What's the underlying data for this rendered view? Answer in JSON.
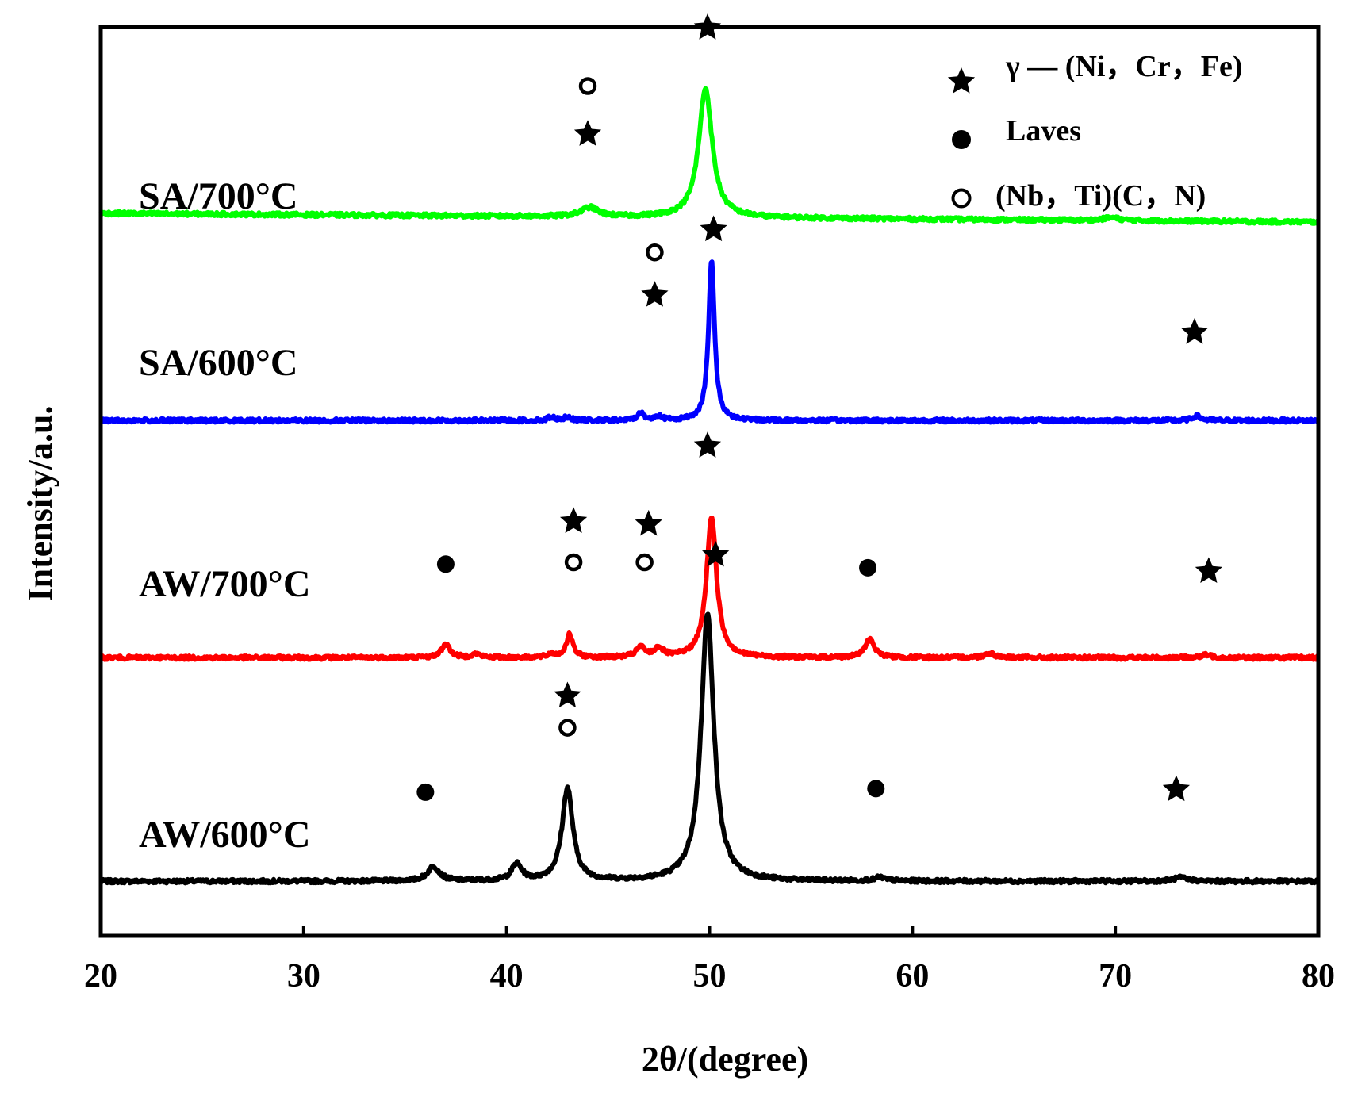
{
  "chart_data": {
    "type": "line",
    "title": "",
    "xlabel": "2θ/(degree)",
    "ylabel": "Intensity/a.u.",
    "xlim": [
      20,
      80
    ],
    "xticks": [
      "20",
      "30",
      "40",
      "50",
      "60",
      "70",
      "80"
    ],
    "ylim": [
      0,
      1
    ],
    "grid": false,
    "legend_position": "top-right",
    "legend": [
      {
        "marker": "star",
        "label": "γ — (Ni，Cr，Fe)"
      },
      {
        "marker": "filled-circle",
        "label": "Laves"
      },
      {
        "marker": "open-circle",
        "label": "(Nb，Ti)(C，N)"
      }
    ],
    "series": [
      {
        "name": "AW/600°C",
        "color": "#000000",
        "baseline": 0.06,
        "peaks": [
          [
            36.4,
            0.016,
            0.35
          ],
          [
            40.5,
            0.018,
            0.3
          ],
          [
            43.0,
            0.102,
            0.32
          ],
          [
            49.9,
            0.294,
            0.38
          ],
          [
            58.4,
            0.004,
            0.3
          ],
          [
            73.2,
            0.004,
            0.4
          ]
        ],
        "markers": [
          {
            "type": "filled-circle",
            "x": 36.0,
            "y": 0.158
          },
          {
            "type": "open-circle",
            "x": 43.0,
            "y": 0.229
          },
          {
            "type": "star",
            "x": 43.0,
            "y": 0.264
          },
          {
            "type": "star",
            "x": 50.3,
            "y": 0.419
          },
          {
            "type": "filled-circle",
            "x": 58.2,
            "y": 0.162
          },
          {
            "type": "star",
            "x": 73.0,
            "y": 0.161
          }
        ]
      },
      {
        "name": "AW/700°C",
        "color": "#ff0000",
        "baseline": 0.306,
        "peaks": [
          [
            37.0,
            0.015,
            0.25
          ],
          [
            38.5,
            0.004,
            0.25
          ],
          [
            42.2,
            0.004,
            0.2
          ],
          [
            43.1,
            0.025,
            0.2
          ],
          [
            46.6,
            0.011,
            0.25
          ],
          [
            47.5,
            0.01,
            0.25
          ],
          [
            50.1,
            0.155,
            0.3
          ],
          [
            57.9,
            0.02,
            0.28
          ],
          [
            63.8,
            0.005,
            0.3
          ],
          [
            74.5,
            0.003,
            0.3
          ]
        ],
        "markers": [
          {
            "type": "filled-circle",
            "x": 37.0,
            "y": 0.409
          },
          {
            "type": "open-circle",
            "x": 43.3,
            "y": 0.411
          },
          {
            "type": "star",
            "x": 43.3,
            "y": 0.456
          },
          {
            "type": "open-circle",
            "x": 46.8,
            "y": 0.411
          },
          {
            "type": "star",
            "x": 47.0,
            "y": 0.453
          },
          {
            "type": "star",
            "x": 49.9,
            "y": 0.539
          },
          {
            "type": "filled-circle",
            "x": 57.8,
            "y": 0.405
          },
          {
            "type": "star",
            "x": 74.6,
            "y": 0.401
          }
        ]
      },
      {
        "name": "SA/600°C",
        "color": "#0000ff",
        "baseline": 0.567,
        "peaks": [
          [
            42.2,
            0.004,
            0.2
          ],
          [
            43.0,
            0.004,
            0.2
          ],
          [
            46.6,
            0.008,
            0.2
          ],
          [
            47.5,
            0.005,
            0.2
          ],
          [
            50.1,
            0.175,
            0.18
          ],
          [
            74.0,
            0.005,
            0.25
          ]
        ],
        "markers": [
          {
            "type": "open-circle",
            "x": 47.3,
            "y": 0.752
          },
          {
            "type": "star",
            "x": 47.3,
            "y": 0.705
          },
          {
            "type": "star",
            "x": 50.2,
            "y": 0.777
          },
          {
            "type": "star",
            "x": 73.9,
            "y": 0.664
          }
        ]
      },
      {
        "name": "SA/700°C",
        "color": "#00ff00",
        "baseline": 0.795,
        "peaks": [
          [
            44.1,
            0.01,
            0.5
          ],
          [
            49.8,
            0.142,
            0.4
          ],
          [
            69.8,
            0.003,
            0.5
          ]
        ],
        "markers": [
          {
            "type": "open-circle",
            "x": 44.0,
            "y": 0.935
          },
          {
            "type": "star",
            "x": 44.0,
            "y": 0.882
          },
          {
            "type": "star",
            "x": 49.9,
            "y": 0.999
          }
        ]
      }
    ]
  }
}
